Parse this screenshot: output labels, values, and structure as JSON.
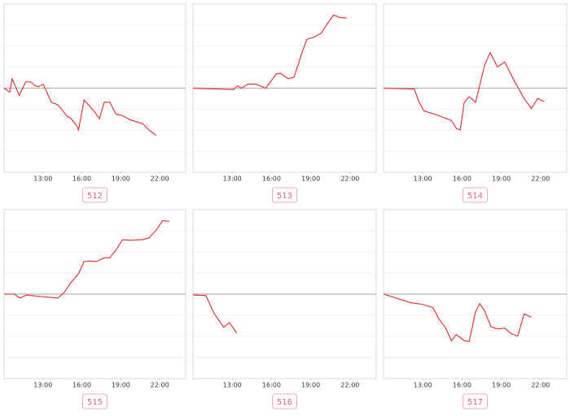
{
  "chart_data": [
    {
      "type": "line",
      "label": "512",
      "color": "#e8262a",
      "grid": true,
      "xlim": [
        10,
        24
      ],
      "ylim": [
        -4,
        4
      ],
      "xticks": [
        {
          "value": 13,
          "label": "13:00"
        },
        {
          "value": 16,
          "label": "16:00"
        },
        {
          "value": 19,
          "label": "19:00"
        },
        {
          "value": 22,
          "label": "22:00"
        }
      ],
      "yticks": [
        -3,
        -2,
        -1,
        0,
        1,
        2,
        3
      ],
      "x": [
        10,
        10.43,
        10.62,
        11.17,
        11.67,
        12.04,
        12.41,
        12.65,
        13.02,
        13.64,
        14.14,
        14.88,
        15.12,
        15.62,
        15.74,
        16.17,
        16.6,
        16.98,
        17.35,
        17.72,
        18.15,
        18.64,
        19.14,
        19.69,
        20.68,
        21.17,
        21.73
      ],
      "values": [
        0,
        -0.19,
        0.45,
        -0.34,
        0.3,
        0.3,
        0.11,
        0.07,
        0.19,
        -0.67,
        -0.79,
        -1.35,
        -1.42,
        -1.8,
        -1.99,
        -0.56,
        -0.86,
        -1.12,
        -1.46,
        -0.67,
        -0.67,
        -1.24,
        -1.31,
        -1.5,
        -1.69,
        -1.99,
        -2.25
      ]
    },
    {
      "type": "line",
      "label": "513",
      "color": "#e8262a",
      "grid": true,
      "xlim": [
        10,
        24
      ],
      "ylim": [
        -4,
        4
      ],
      "xticks": [
        {
          "value": 13,
          "label": "13:00"
        },
        {
          "value": 16,
          "label": "16:00"
        },
        {
          "value": 19,
          "label": "19:00"
        },
        {
          "value": 22,
          "label": "22:00"
        }
      ],
      "yticks": [
        -3,
        -2,
        -1,
        0,
        1,
        2,
        3
      ],
      "x": [
        10,
        13.09,
        13.4,
        13.7,
        14.2,
        14.81,
        15.56,
        16.36,
        16.67,
        17.28,
        17.72,
        18.33,
        18.7,
        19.26,
        19.81,
        20.31,
        20.74,
        21.17,
        21.73
      ],
      "values": [
        0,
        -0.07,
        0.11,
        0,
        0.19,
        0.19,
        0,
        0.67,
        0.71,
        0.45,
        0.52,
        1.69,
        2.32,
        2.43,
        2.62,
        3.11,
        3.48,
        3.37,
        3.33
      ]
    },
    {
      "type": "line",
      "label": "514",
      "color": "#e8262a",
      "grid": true,
      "xlim": [
        10,
        24
      ],
      "ylim": [
        -4,
        4
      ],
      "xticks": [
        {
          "value": 13,
          "label": "13:00"
        },
        {
          "value": 16,
          "label": "16:00"
        },
        {
          "value": 19,
          "label": "19:00"
        },
        {
          "value": 22,
          "label": "22:00"
        }
      ],
      "yticks": [
        -3,
        -2,
        -1,
        0,
        1,
        2,
        3
      ],
      "x": [
        10,
        12.35,
        12.72,
        13.09,
        13.95,
        15.19,
        15.56,
        15.86,
        16.17,
        16.54,
        17.04,
        17.72,
        18.15,
        18.7,
        19.26,
        20,
        20.74,
        21.3,
        21.79,
        22.28
      ],
      "values": [
        0,
        -0.04,
        -0.67,
        -1.09,
        -1.24,
        -1.54,
        -1.91,
        -1.99,
        -0.67,
        -0.41,
        -0.67,
        1.09,
        1.69,
        1.01,
        1.24,
        0.34,
        -0.49,
        -0.97,
        -0.49,
        -0.64
      ]
    },
    {
      "type": "line",
      "label": "515",
      "color": "#e8262a",
      "grid": true,
      "xlim": [
        10,
        24
      ],
      "ylim": [
        -4,
        4
      ],
      "xticks": [
        {
          "value": 13,
          "label": "13:00"
        },
        {
          "value": 16,
          "label": "16:00"
        },
        {
          "value": 19,
          "label": "19:00"
        },
        {
          "value": 22,
          "label": "22:00"
        }
      ],
      "yticks": [
        -3,
        -2,
        -1,
        0,
        1,
        2,
        3
      ],
      "x": [
        10,
        10.8,
        11.23,
        11.73,
        12.78,
        14.14,
        14.63,
        15.12,
        15.74,
        16.17,
        16.6,
        17.1,
        17.72,
        18.15,
        18.64,
        19.14,
        19.69,
        20.68,
        21.17,
        21.73,
        22.22,
        22.72
      ],
      "values": [
        0,
        0,
        -0.19,
        -0.04,
        -0.11,
        -0.19,
        0.07,
        0.52,
        0.97,
        1.54,
        1.57,
        1.54,
        1.72,
        1.72,
        2.1,
        2.58,
        2.55,
        2.58,
        2.66,
        3.03,
        3.48,
        3.45
      ]
    },
    {
      "type": "line",
      "label": "516",
      "color": "#e8262a",
      "grid": true,
      "xlim": [
        10,
        24
      ],
      "ylim": [
        -4,
        4
      ],
      "xticks": [
        {
          "value": 13,
          "label": "13:00"
        },
        {
          "value": 16,
          "label": "16:00"
        },
        {
          "value": 19,
          "label": "19:00"
        },
        {
          "value": 22,
          "label": "22:00"
        }
      ],
      "yticks": [
        -3,
        -2,
        -1,
        0,
        1,
        2,
        3
      ],
      "x": [
        10,
        10.99,
        11.6,
        12.35,
        12.78,
        13.33
      ],
      "values": [
        -0.04,
        -0.07,
        -0.9,
        -1.57,
        -1.35,
        -1.84
      ]
    },
    {
      "type": "line",
      "label": "517",
      "color": "#e8262a",
      "grid": true,
      "xlim": [
        10,
        24
      ],
      "ylim": [
        -4,
        4
      ],
      "xticks": [
        {
          "value": 13,
          "label": "13:00"
        },
        {
          "value": 16,
          "label": "16:00"
        },
        {
          "value": 19,
          "label": "19:00"
        },
        {
          "value": 22,
          "label": "22:00"
        }
      ],
      "yticks": [
        -3,
        -2,
        -1,
        0,
        1,
        2,
        3
      ],
      "x": [
        10,
        12.1,
        13.02,
        13.77,
        14.26,
        14.75,
        15.19,
        15.56,
        16.17,
        16.54,
        17.04,
        17.35,
        17.72,
        18.21,
        18.7,
        19.26,
        19.75,
        20.25,
        20.74,
        21.3
      ],
      "values": [
        0,
        -0.41,
        -0.49,
        -0.64,
        -1.2,
        -1.61,
        -2.21,
        -1.91,
        -2.21,
        -2.25,
        -0.82,
        -0.45,
        -0.79,
        -1.54,
        -1.65,
        -1.61,
        -1.87,
        -1.99,
        -0.94,
        -1.09
      ]
    }
  ]
}
